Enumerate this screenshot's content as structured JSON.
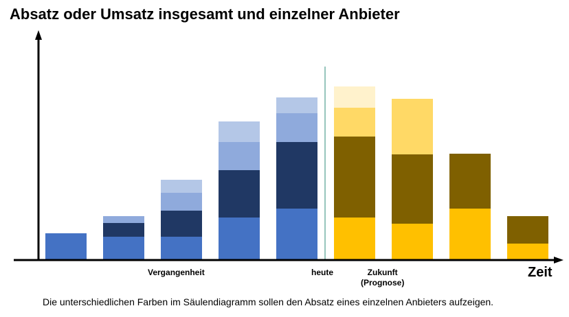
{
  "chart_data": {
    "type": "bar",
    "stacked": true,
    "title": "Absatz oder Umsatz insgesamt und einzelner Anbieter",
    "xlabel": "Zeit",
    "ylabel": "",
    "grid": false,
    "legend": "none",
    "time_labels": {
      "past": "Vergangenheit",
      "now": "heute",
      "future": "Zukunft\n(Prognose)"
    },
    "caption": "Die unterschiedlichen  Farben im Säulendiagramm sollen den Absatz eines einzelnen Anbieters aufzeigen.",
    "ylim": [
      0,
      255
    ],
    "past_colors": [
      "#4472c4",
      "#203864",
      "#8faadc",
      "#b4c7e7"
    ],
    "future_colors": [
      "#ffc000",
      "#7f6000",
      "#ffd966",
      "#fff2cc"
    ],
    "columns": [
      {
        "period": "past",
        "segments": [
          39
        ]
      },
      {
        "period": "past",
        "segments": [
          34,
          20,
          10
        ]
      },
      {
        "period": "past",
        "segments": [
          34,
          38,
          26,
          19
        ]
      },
      {
        "period": "past",
        "segments": [
          62,
          69,
          41,
          30
        ]
      },
      {
        "period": "past",
        "segments": [
          75,
          97,
          42,
          23
        ]
      },
      {
        "period": "future",
        "segments": [
          62,
          118,
          42,
          31
        ]
      },
      {
        "period": "future",
        "segments": [
          53,
          101,
          81
        ]
      },
      {
        "period": "future",
        "segments": [
          75,
          80
        ]
      },
      {
        "period": "future",
        "segments": [
          24,
          40
        ]
      }
    ]
  }
}
